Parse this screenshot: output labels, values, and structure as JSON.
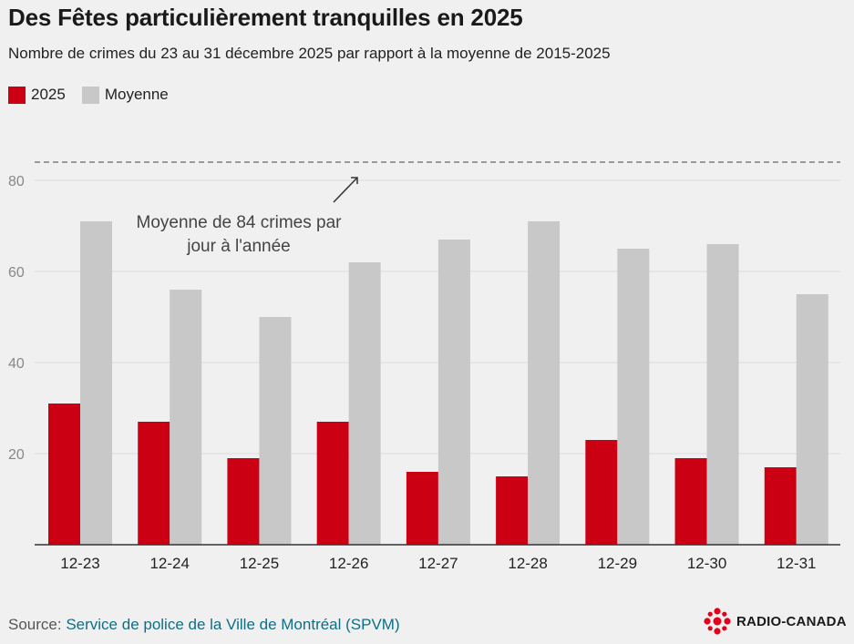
{
  "title": "Des Fêtes particulièrement tranquilles en 2025",
  "subtitle": "Nombre de crimes du 23 au 31 décembre 2025 par rapport à la moyenne de 2015-2025",
  "legend": {
    "series_2025": "2025",
    "series_avg": "Moyenne"
  },
  "colors": {
    "series_2025": "#cc0013",
    "series_avg": "#c8c8c8",
    "reference_line": "#9a9a9a",
    "gridline": "#dddddd",
    "axis": "#333333",
    "source_link": "#0f6e86",
    "logo": "#e2001a"
  },
  "source": {
    "label": "Source:",
    "text": "Service de police de la Ville de Montréal (SPVM)"
  },
  "logo": {
    "icon": "radio-canada-gem-icon",
    "text": "RADIO-CANADA"
  },
  "chart_data": {
    "type": "bar",
    "title": "Des Fêtes particulièrement tranquilles en 2025",
    "xlabel": "",
    "ylabel": "",
    "ylim": [
      0,
      84
    ],
    "yticks": [
      20,
      40,
      60,
      80
    ],
    "grid": true,
    "legend_position": "top-left",
    "categories": [
      "12-23",
      "12-24",
      "12-25",
      "12-26",
      "12-27",
      "12-28",
      "12-29",
      "12-30",
      "12-31"
    ],
    "series": [
      {
        "name": "2025",
        "values": [
          31,
          27,
          19,
          27,
          16,
          15,
          23,
          19,
          17
        ]
      },
      {
        "name": "Moyenne",
        "values": [
          71,
          56,
          50,
          62,
          67,
          71,
          65,
          66,
          55
        ]
      }
    ],
    "reference_line": {
      "value": 84,
      "style": "dashed"
    },
    "annotation": {
      "lines": [
        "Moyenne de 84 crimes par",
        "jour à l'année"
      ]
    }
  }
}
